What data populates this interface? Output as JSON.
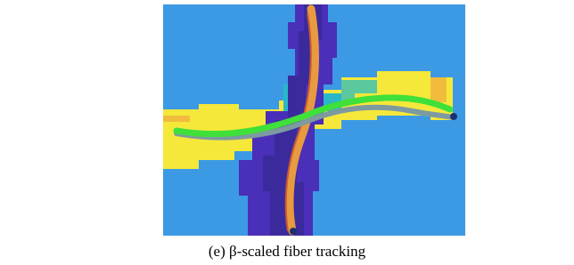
{
  "caption": "(e) β-scaled fiber tracking"
}
